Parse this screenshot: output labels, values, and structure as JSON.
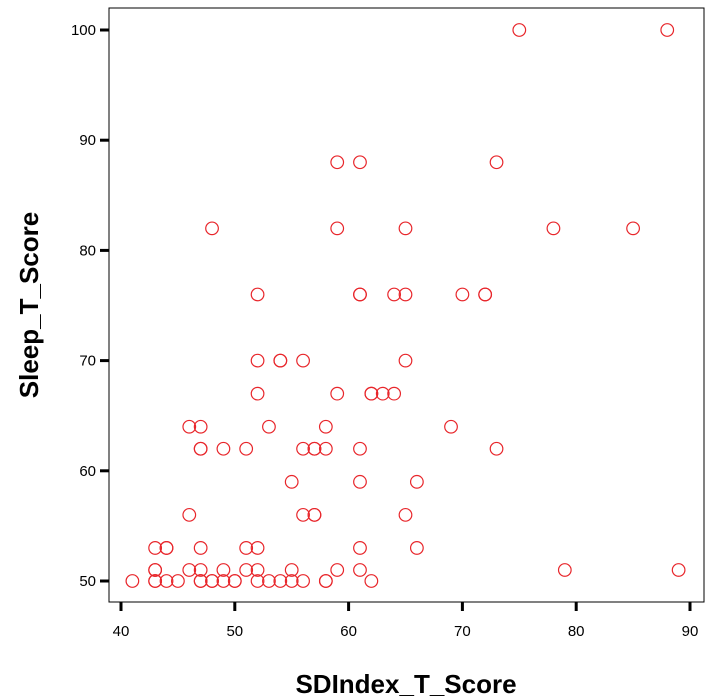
{
  "chart_data": {
    "type": "scatter",
    "title": "",
    "xlabel": "SDIndex_T_Score",
    "ylabel": "Sleep_T_Score",
    "xlim": [
      39.5,
      91
    ],
    "ylim": [
      48,
      102
    ],
    "xticks": [
      40,
      50,
      60,
      70,
      80,
      90
    ],
    "yticks": [
      50,
      60,
      70,
      80,
      90,
      100
    ],
    "grid": false,
    "marker": "open-circle",
    "marker_color": "#e8262b",
    "points": [
      [
        41,
        50
      ],
      [
        43,
        50
      ],
      [
        43,
        50
      ],
      [
        43,
        51
      ],
      [
        43,
        51
      ],
      [
        43,
        53
      ],
      [
        44,
        53
      ],
      [
        44,
        53
      ],
      [
        44,
        50
      ],
      [
        45,
        50
      ],
      [
        46,
        51
      ],
      [
        46,
        56
      ],
      [
        46,
        64
      ],
      [
        47,
        64
      ],
      [
        47,
        62
      ],
      [
        47,
        62
      ],
      [
        47,
        53
      ],
      [
        47,
        51
      ],
      [
        47,
        50
      ],
      [
        47,
        50
      ],
      [
        48,
        50
      ],
      [
        48,
        50
      ],
      [
        48,
        82
      ],
      [
        49,
        50
      ],
      [
        49,
        51
      ],
      [
        49,
        62
      ],
      [
        50,
        50
      ],
      [
        50,
        50
      ],
      [
        51,
        53
      ],
      [
        51,
        51
      ],
      [
        51,
        62
      ],
      [
        52,
        53
      ],
      [
        52,
        51
      ],
      [
        52,
        50
      ],
      [
        52,
        67
      ],
      [
        52,
        70
      ],
      [
        52,
        76
      ],
      [
        53,
        64
      ],
      [
        53,
        50
      ],
      [
        54,
        50
      ],
      [
        54,
        70
      ],
      [
        54,
        70
      ],
      [
        55,
        59
      ],
      [
        55,
        50
      ],
      [
        55,
        51
      ],
      [
        56,
        56
      ],
      [
        56,
        50
      ],
      [
        56,
        62
      ],
      [
        56,
        70
      ],
      [
        57,
        56
      ],
      [
        57,
        56
      ],
      [
        57,
        62
      ],
      [
        57,
        62
      ],
      [
        58,
        64
      ],
      [
        58,
        62
      ],
      [
        58,
        50
      ],
      [
        58,
        50
      ],
      [
        59,
        51
      ],
      [
        59,
        67
      ],
      [
        59,
        82
      ],
      [
        59,
        88
      ],
      [
        61,
        88
      ],
      [
        61,
        76
      ],
      [
        61,
        76
      ],
      [
        61,
        62
      ],
      [
        61,
        59
      ],
      [
        61,
        53
      ],
      [
        61,
        51
      ],
      [
        62,
        50
      ],
      [
        62,
        67
      ],
      [
        62,
        67
      ],
      [
        63,
        67
      ],
      [
        64,
        67
      ],
      [
        64,
        76
      ],
      [
        65,
        76
      ],
      [
        65,
        82
      ],
      [
        65,
        70
      ],
      [
        65,
        56
      ],
      [
        66,
        59
      ],
      [
        66,
        53
      ],
      [
        69,
        64
      ],
      [
        70,
        76
      ],
      [
        72,
        76
      ],
      [
        72,
        76
      ],
      [
        73,
        62
      ],
      [
        73,
        88
      ],
      [
        75,
        100
      ],
      [
        78,
        82
      ],
      [
        79,
        51
      ],
      [
        85,
        82
      ],
      [
        88,
        100
      ],
      [
        89,
        51
      ]
    ]
  }
}
